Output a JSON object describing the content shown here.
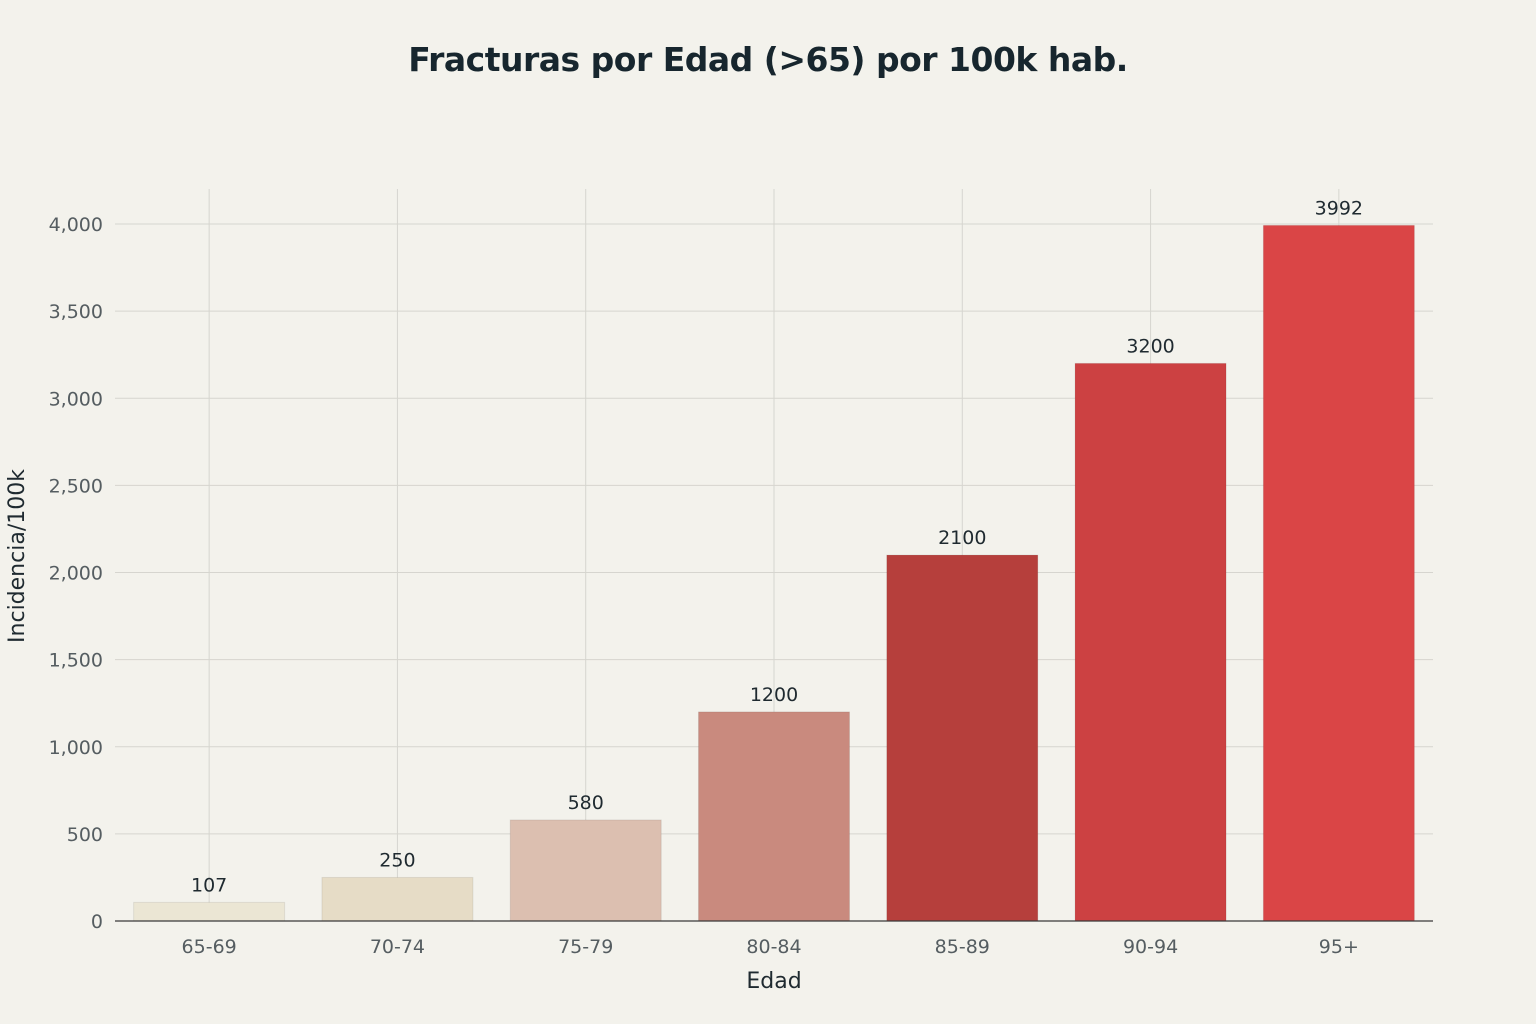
{
  "chart_data": {
    "type": "bar",
    "title": "Fracturas por Edad (>65) por 100k hab.",
    "xlabel": "Edad",
    "ylabel": "Incidencia/100k",
    "categories": [
      "65-69",
      "70-74",
      "75-79",
      "80-84",
      "85-89",
      "90-94",
      "95+"
    ],
    "values": [
      107,
      250,
      580,
      1200,
      2100,
      3200,
      3992
    ],
    "data_labels": [
      "107",
      "250",
      "580",
      "1200",
      "2100",
      "3200",
      "3992"
    ],
    "colors": [
      "#ebe6d4",
      "#e6dcc6",
      "#dcbfb0",
      "#c98a7e",
      "#b63f3c",
      "#cc4142",
      "#da4546"
    ],
    "ylim": [
      0,
      4200
    ],
    "yticks": [
      0,
      500,
      1000,
      1500,
      2000,
      2500,
      3000,
      3500,
      4000
    ],
    "ytick_labels": [
      "0",
      "500",
      "1,000",
      "1,500",
      "2,000",
      "2,500",
      "3,000",
      "3,500",
      "4,000"
    ],
    "grid": true,
    "legend": "none"
  }
}
